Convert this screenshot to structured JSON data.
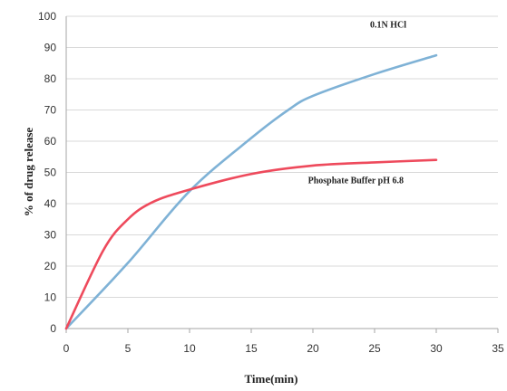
{
  "chart_data": {
    "type": "line",
    "xlabel": "Time(min)",
    "ylabel": "% of drug release",
    "xlim": [
      0,
      35
    ],
    "ylim": [
      0,
      100
    ],
    "xticks": [
      0,
      5,
      10,
      15,
      20,
      25,
      30,
      35
    ],
    "yticks": [
      0,
      10,
      20,
      30,
      40,
      50,
      60,
      70,
      80,
      90,
      100
    ],
    "grid": "horizontal",
    "series": [
      {
        "name": "0.1N HCl",
        "color": "#7fb2d6",
        "x": [
          0,
          5,
          10,
          15,
          18,
          20,
          25,
          30
        ],
        "y": [
          0,
          21,
          44,
          61,
          70,
          74.5,
          81.5,
          87.5
        ]
      },
      {
        "name": "Phosphate Buffer pH 6.8",
        "color": "#ee4a5c",
        "x": [
          0,
          3,
          5,
          7,
          10,
          15,
          20,
          25,
          30
        ],
        "y": [
          0,
          25,
          35,
          40.5,
          44.5,
          49.5,
          52.2,
          53.2,
          54
        ]
      }
    ]
  }
}
